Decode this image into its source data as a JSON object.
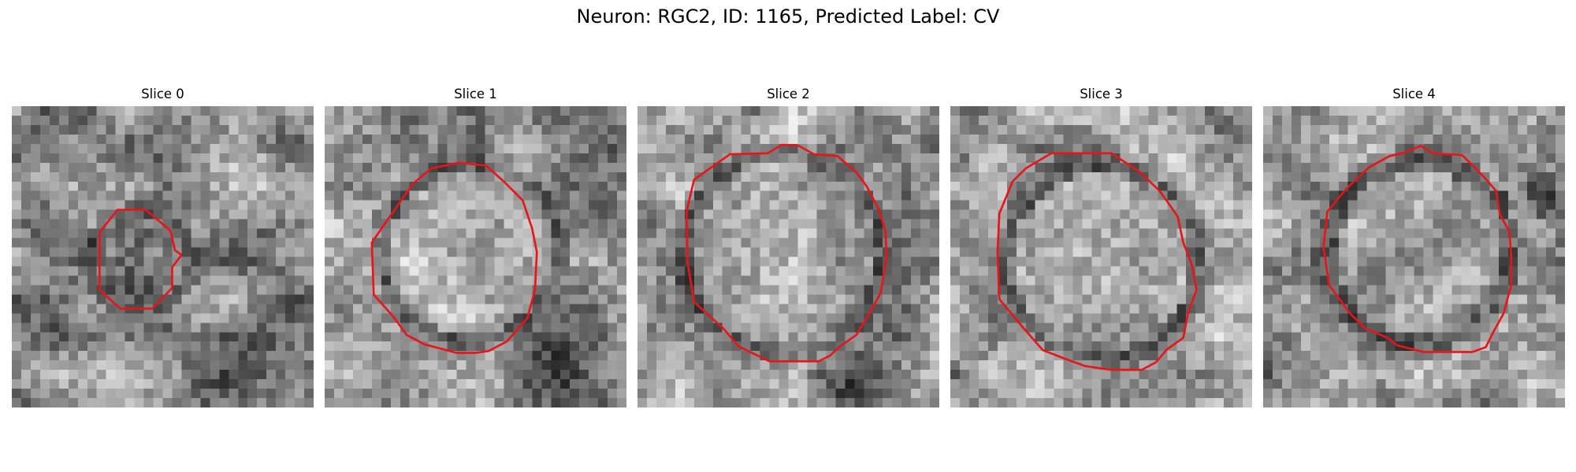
{
  "figure": {
    "suptitle": "Neuron: RGC2, ID: 1165, Predicted Label: CV",
    "contour_color": "#e8141a",
    "colormap": "gray",
    "panels": [
      {
        "title": "Slice 0",
        "seed": 11
      },
      {
        "title": "Slice 1",
        "seed": 23
      },
      {
        "title": "Slice 2",
        "seed": 37
      },
      {
        "title": "Slice 3",
        "seed": 41
      },
      {
        "title": "Slice 4",
        "seed": 53
      }
    ]
  }
}
